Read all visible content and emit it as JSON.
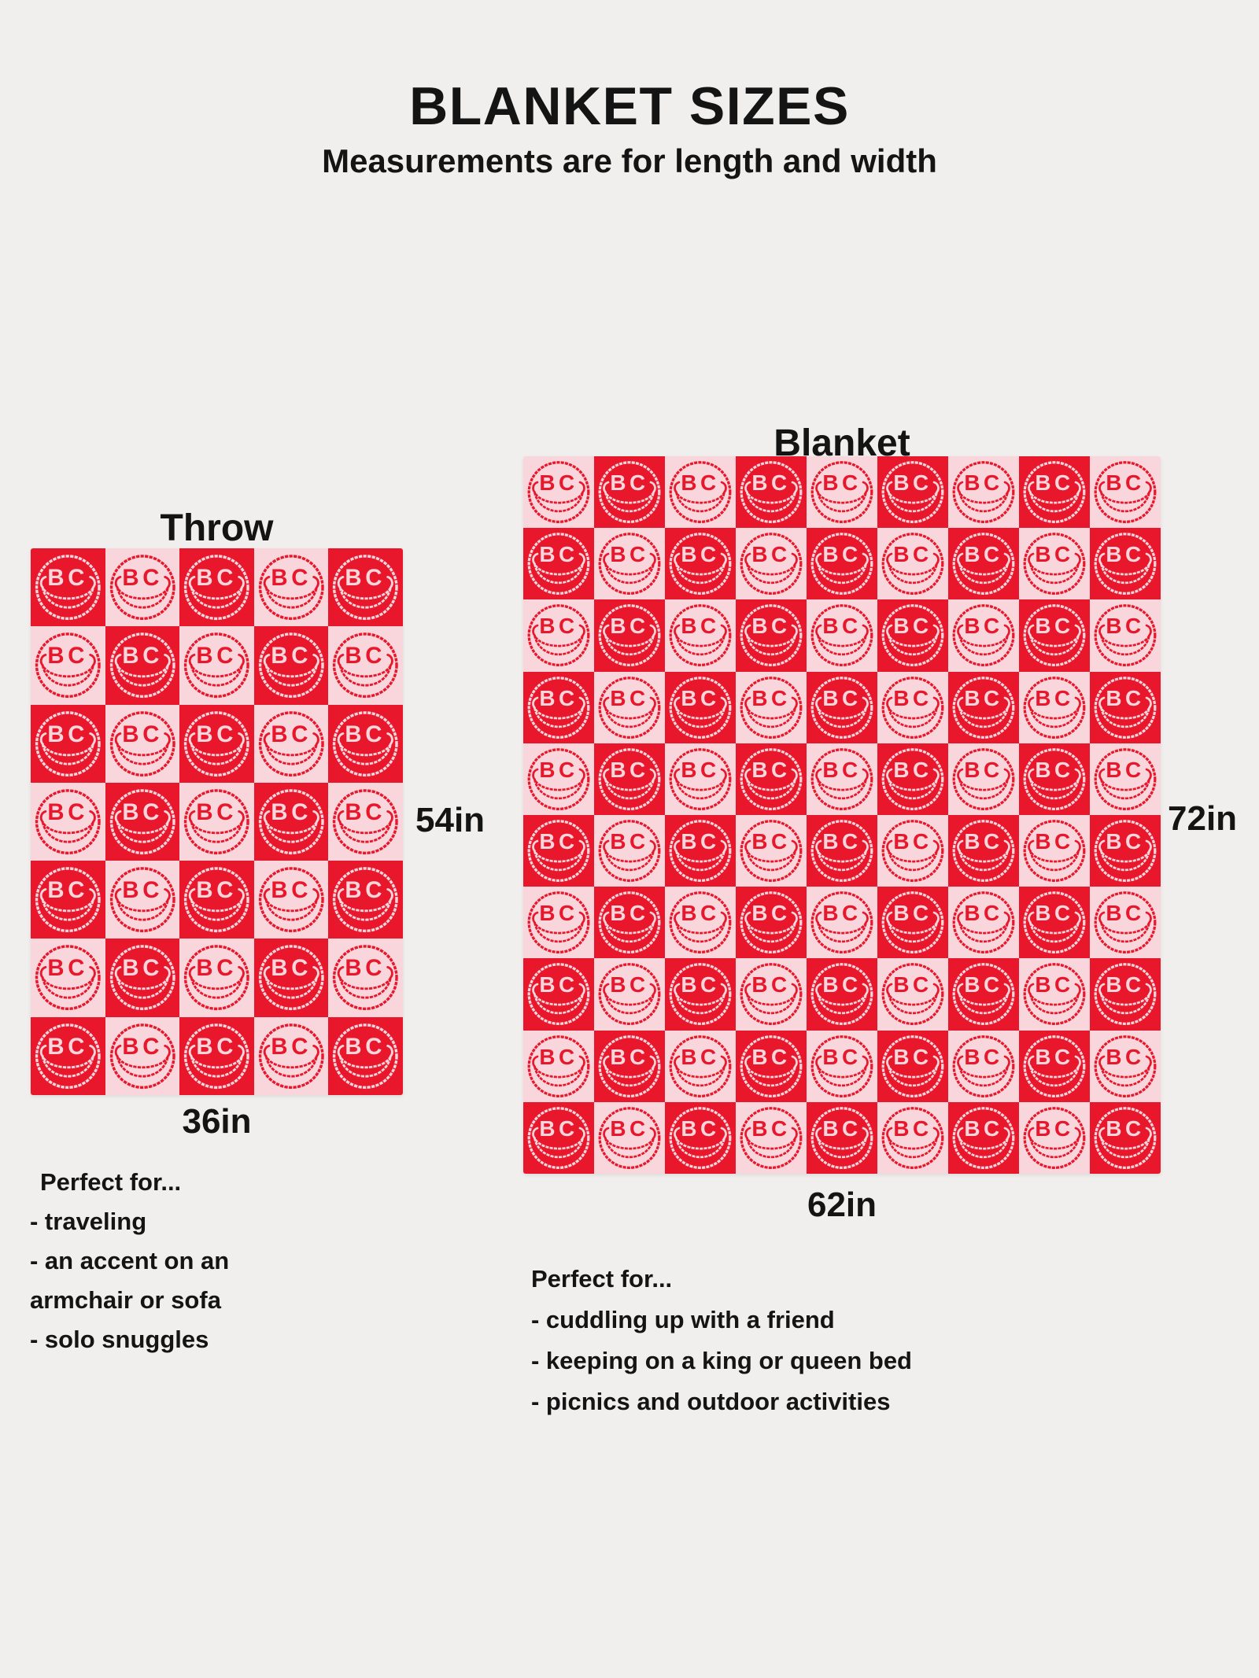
{
  "page": {
    "title": "BLANKET SIZES",
    "subtitle": "Measurements are for length and width",
    "background": "#f0efed",
    "text_color": "#141414"
  },
  "logo": {
    "text": "BC"
  },
  "colors": {
    "red": "#e8172c",
    "pink": "#f8d6dc"
  },
  "throw": {
    "name": "Throw",
    "length_label": "54in",
    "width_label": "36in",
    "grid": {
      "columns": 5,
      "rows": 7,
      "first_cell": "red"
    },
    "perfect_for": {
      "heading": "Perfect for...",
      "items": [
        "- traveling",
        "- an accent on an armchair or sofa",
        "- solo snuggles"
      ]
    }
  },
  "blanket": {
    "name": "Blanket",
    "length_label": "72in",
    "width_label": "62in",
    "grid": {
      "columns": 9,
      "rows": 10,
      "first_cell": "pink"
    },
    "perfect_for": {
      "heading": "Perfect for...",
      "items": [
        "- cuddling up with a friend",
        "- keeping on a king or queen bed",
        "- picnics and outdoor activities"
      ]
    }
  }
}
